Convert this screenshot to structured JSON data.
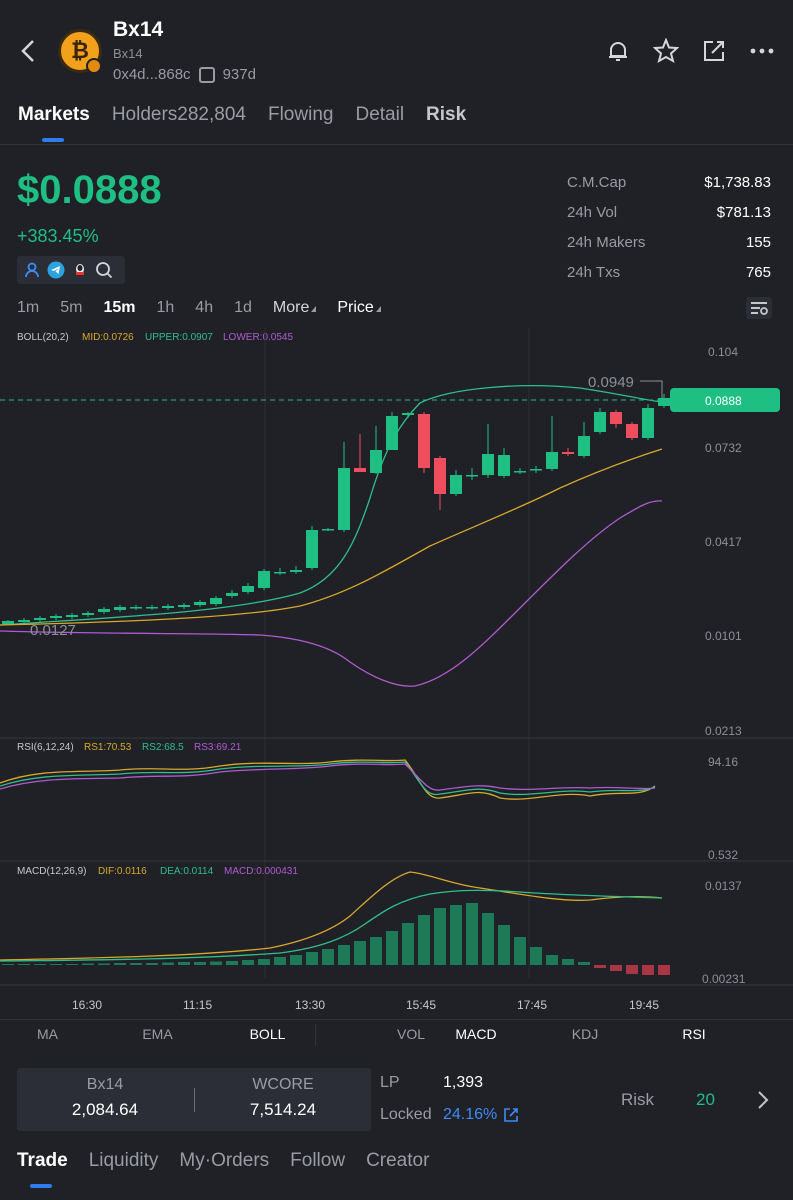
{
  "header": {
    "token_name": "Bx14",
    "token_sub": "Bx14",
    "address": "0x4d...868c",
    "age": "937d",
    "icons": [
      "back-icon",
      "bell-icon",
      "star-icon",
      "share-icon",
      "more-icon"
    ]
  },
  "tabs": [
    {
      "label": "Markets",
      "active": true
    },
    {
      "label": "Holders282,804",
      "active": false
    },
    {
      "label": "Flowing",
      "active": false
    },
    {
      "label": "Detail",
      "active": false
    },
    {
      "label": "Risk",
      "active": false
    }
  ],
  "price": {
    "value": "$0.0888",
    "change": "+383.45%"
  },
  "stats": [
    {
      "label": "C.M.Cap",
      "value": "$1,738.83"
    },
    {
      "label": "24h Vol",
      "value": "$781.13"
    },
    {
      "label": "24h Makers",
      "value": "155"
    },
    {
      "label": "24h Txs",
      "value": "765"
    }
  ],
  "timeframes": [
    {
      "label": "1m",
      "active": false
    },
    {
      "label": "5m",
      "active": false
    },
    {
      "label": "15m",
      "active": true
    },
    {
      "label": "1h",
      "active": false
    },
    {
      "label": "4h",
      "active": false
    },
    {
      "label": "1d",
      "active": false
    }
  ],
  "more_label": "More",
  "price_label": "Price",
  "chart_data": {
    "type": "candlestick",
    "indicators": {
      "boll": {
        "label": "BOLL(20,2)",
        "mid": "MID:0.0726",
        "upper": "UPPER:0.0907",
        "lower": "LOWER:0.0545"
      },
      "rsi": {
        "label": "RSI(6,12,24)",
        "rs1": "RS1:70.53",
        "rs2": "RS2:68.5",
        "rs3": "RS3:69.21"
      },
      "macd": {
        "label": "MACD(12,26,9)",
        "dif": "DIF:0.0116",
        "dea": "DEA:0.0114",
        "macd": "MACD:0.000431"
      }
    },
    "price_ticks": [
      "0.104",
      "0.0732",
      "0.0417",
      "0.0101",
      "0.0213"
    ],
    "rsi_ticks": [
      "94.16",
      "0.532"
    ],
    "macd_ticks": [
      "0.0137",
      "0.00231"
    ],
    "time_ticks": [
      "16:30",
      "11:15",
      "13:30",
      "15:45",
      "17:45",
      "19:45"
    ],
    "current_price": "0.0888",
    "high_annotation": "0.0949",
    "low_annotation": "0.0127",
    "colors": {
      "up": "#1fbf84",
      "down": "#ef4e5f",
      "mid": "#d9a82a",
      "upper": "#2fbf8a",
      "lower": "#b05ad0"
    }
  },
  "indicator_bar": [
    {
      "label": "MA",
      "active": false
    },
    {
      "label": "EMA",
      "active": false
    },
    {
      "label": "BOLL",
      "active": true
    },
    {
      "label": "VOL",
      "active": false
    },
    {
      "label": "MACD",
      "active": true
    },
    {
      "label": "KDJ",
      "active": false
    },
    {
      "label": "RSI",
      "active": true
    }
  ],
  "pool": {
    "base_name": "Bx14",
    "base_amount": "2,084.64",
    "quote_name": "WCORE",
    "quote_amount": "7,514.24",
    "lp_label": "LP",
    "lp_value": "1,393",
    "locked_label": "Locked",
    "locked_value": "24.16%",
    "risk_label": "Risk",
    "risk_value": "20"
  },
  "bottom_tabs": [
    {
      "label": "Trade",
      "active": true
    },
    {
      "label": "Liquidity",
      "active": false
    },
    {
      "label": "My·Orders",
      "active": false
    },
    {
      "label": "Follow",
      "active": false
    },
    {
      "label": "Creator",
      "active": false
    }
  ]
}
